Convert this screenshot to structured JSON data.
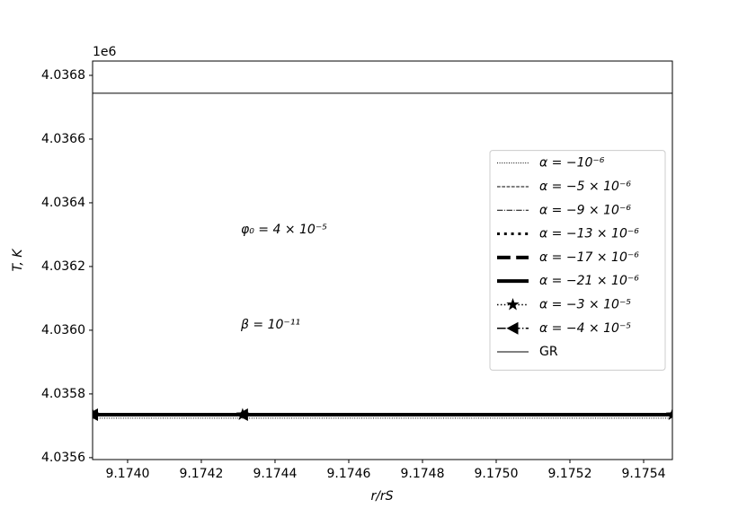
{
  "chart_data": {
    "type": "line",
    "xlabel": "r/rS",
    "ylabel": "T, K",
    "y_offset_text": "1e6",
    "annotations": [
      "φ₀ = 4 × 10⁻⁵",
      "β = 10⁻¹¹"
    ],
    "x": [
      9.173905,
      9.174312,
      9.175478
    ],
    "xlim": [
      9.173905,
      9.175478
    ],
    "xticks": [
      {
        "value": 9.174,
        "label": "9.1740"
      },
      9.1742,
      9.1744,
      9.1746,
      9.1748,
      {
        "value": 9.175,
        "label": "9.1750"
      },
      9.1752,
      9.1754
    ],
    "ylim": [
      4.035594,
      4.036845
    ],
    "yticks": [
      4.0356,
      4.0358,
      {
        "value": 4.036,
        "label": "4.0360"
      },
      4.0362,
      4.0364,
      4.0366,
      4.0368
    ],
    "legend": "center right",
    "series": [
      {
        "name": "α = −10⁻⁶",
        "color": "#000000",
        "linestyle": "dotted",
        "linewidth": 1,
        "values": [
          4.035724,
          4.035724,
          4.035724
        ]
      },
      {
        "name": "α = −5 × 10⁻⁶",
        "color": "#000000",
        "linestyle": "dashed",
        "linewidth": 1,
        "values": [
          4.035735,
          4.035735,
          4.035735
        ]
      },
      {
        "name": "α = −9 × 10⁻⁶",
        "color": "#000000",
        "linestyle": "dashdot",
        "linewidth": 1,
        "values": [
          4.035735,
          4.035735,
          4.035735
        ]
      },
      {
        "name": "α = −13 × 10⁻⁶",
        "color": "#000000",
        "linestyle": "dotted",
        "linewidth": 3,
        "values": [
          4.035735,
          4.035735,
          4.035735
        ]
      },
      {
        "name": "α = −17 × 10⁻⁶",
        "color": "#000000",
        "linestyle": "dashed",
        "linewidth": 4,
        "values": [
          4.035735,
          4.035735,
          4.035735
        ]
      },
      {
        "name": "α = −21 × 10⁻⁶",
        "color": "#000000",
        "linestyle": "solid",
        "linewidth": 4,
        "values": [
          4.035735,
          4.035735,
          4.035735
        ]
      },
      {
        "name": "α = −3 × 10⁻⁵",
        "color": "#000000",
        "linestyle": "dotted",
        "linewidth": 1.5,
        "marker": "star",
        "values": [
          4.035735,
          4.035735,
          4.035735
        ]
      },
      {
        "name": "α = −4 × 10⁻⁵",
        "color": "#000000",
        "linestyle": "dashdot",
        "linewidth": 1.5,
        "marker": "triangle-left",
        "values": [
          4.035735,
          4.035735,
          4.035735
        ]
      },
      {
        "name": "GR",
        "color": "#000000",
        "linestyle": "solid",
        "linewidth": 1,
        "values": [
          4.036744,
          4.036744,
          4.036744
        ]
      }
    ]
  }
}
